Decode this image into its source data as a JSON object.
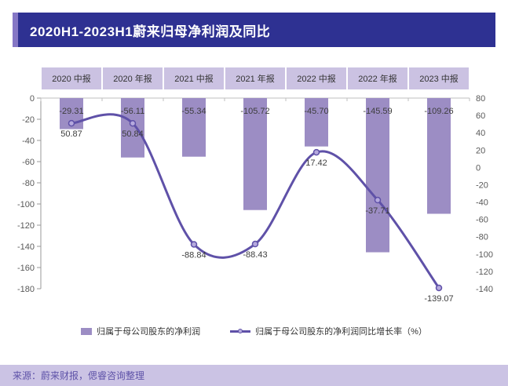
{
  "title": "2020H1-2023H1蔚来归母净利润及同比",
  "source": "来源：蔚来财报，偲睿咨询整理",
  "legend": {
    "bar": "归属于母公司股东的净利润",
    "line": "归属于母公司股东的净利润同比增长率（%）"
  },
  "colors": {
    "title_bg": "#2E3192",
    "title_accent": "#8577C5",
    "bar": "#9C8DC4",
    "line": "#5F51A8",
    "marker_fill": "#B5A9DE",
    "header_bg": "#CBC2E2",
    "footer_bg": "#CBC3E4",
    "footer_text": "#5E52A8",
    "axis_text": "#595959",
    "label_text": "#3D3D3D",
    "axis_line": "#BFBFBF"
  },
  "chart_data": {
    "type": "bar",
    "subtype": "bar+line combo, dual axis",
    "title": "2020H1-2023H1蔚来归母净利润及同比",
    "categories": [
      "2020 中报",
      "2020 年报",
      "2021 中报",
      "2021 年报",
      "2022 中报",
      "2022 年报",
      "2023 中报"
    ],
    "series": [
      {
        "name": "归属于母公司股东的净利润",
        "type": "bar",
        "axis": "left",
        "values": [
          -29.31,
          -56.11,
          -55.34,
          -105.72,
          -45.7,
          -145.59,
          -109.26
        ],
        "labels": [
          "-29.31",
          "-56.11",
          "-55.34",
          "-105.72",
          "-45.70",
          "-145.59",
          "-109.26"
        ]
      },
      {
        "name": "归属于母公司股东的净利润同比增长率（%）",
        "type": "line",
        "axis": "right",
        "values": [
          50.87,
          50.84,
          -88.84,
          -88.43,
          17.42,
          -37.71,
          -139.07
        ],
        "labels": [
          "50.87",
          "50.84",
          "-88.84",
          "-88.43",
          "17.42",
          "-37.71",
          "-139.07"
        ]
      }
    ],
    "left_axis": {
      "max": 0,
      "min": -180,
      "step": 20
    },
    "right_axis": {
      "max": 80,
      "min": -140,
      "step": 20
    },
    "grid": false,
    "legend_position": "bottom"
  }
}
